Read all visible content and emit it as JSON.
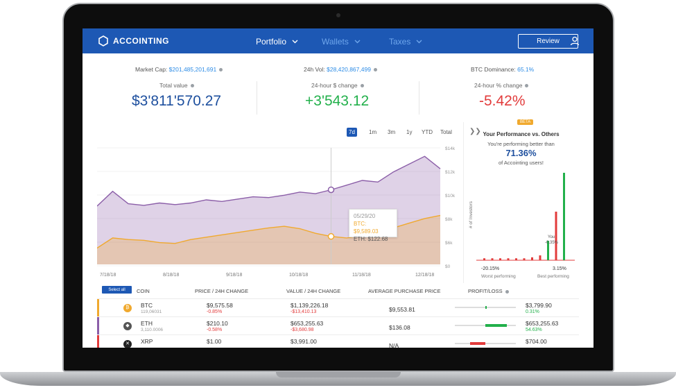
{
  "header": {
    "logo": "ACCOINTING",
    "nav": [
      {
        "label": "Portfolio"
      },
      {
        "label": "Wallets"
      },
      {
        "label": "Taxes"
      }
    ],
    "review_label": "Review"
  },
  "market": {
    "market_cap_label": "Market Cap:",
    "market_cap_value": "$201,485,201,691",
    "vol_label": "24h Vol:",
    "vol_value": "$28,420,867,499",
    "dominance_label": "BTC Dominance:",
    "dominance_value": "65.1%"
  },
  "totals": {
    "total_label": "Total value",
    "total_value": "$3'811'570.27",
    "change_label": "24-hour $ change",
    "change_value": "+3'543.12",
    "pct_label": "24-hour % change",
    "pct_value": "-5.42%"
  },
  "ranges": [
    "7d",
    "1m",
    "3m",
    "1y",
    "YTD",
    "Total"
  ],
  "colors": {
    "brand": "#1d58b4",
    "btc": "#f0a92e",
    "eth": "#8b5ea8",
    "positive": "#22b04b",
    "negative": "#e23b3b"
  },
  "chart_data": {
    "type": "area",
    "x_tick_labels": [
      "7/18/18",
      "8/18/18",
      "9/18/18",
      "10/18/18",
      "11/18/18",
      "12/18/18"
    ],
    "y_tick_labels": [
      "$14k",
      "$12k",
      "$10k",
      "$8k",
      "$6k",
      "$0"
    ],
    "series": [
      {
        "name": "ETH",
        "color": "#8b5ea8",
        "values": [
          7.5,
          9.4,
          7.8,
          7.6,
          7.9,
          7.7,
          7.9,
          8.3,
          8.1,
          8.4,
          8.7,
          8.6,
          8.9,
          9.3,
          9.1,
          9.6,
          10.2,
          10.8,
          10.6,
          11.9,
          12.9,
          13.9,
          12.3
        ]
      },
      {
        "name": "BTC",
        "color": "#f0a92e",
        "values": [
          2.1,
          3.4,
          3.2,
          3.1,
          2.8,
          2.7,
          3.2,
          3.5,
          3.8,
          4.1,
          4.4,
          4.7,
          4.9,
          4.6,
          4.0,
          3.6,
          3.4,
          3.7,
          4.2,
          4.7,
          5.3,
          5.9,
          6.3
        ]
      }
    ],
    "tooltip": {
      "date": "05/29/20",
      "btc": "BTC: $9,589.03",
      "eth": "ETH: $122.68"
    }
  },
  "performance": {
    "badge": "BETA",
    "title": "Your Performance vs. Others",
    "subtitle": "You're performing better than",
    "value": "71.36%",
    "subtitle2": "of Accointing users!",
    "axis_label": "# of Investors",
    "you_label": "You",
    "you_value": "-0.35%",
    "min_value": "-20.15%",
    "max_value": "3.15%",
    "worst_label": "Worst performing",
    "best_label": "Best performing",
    "bars": [
      2,
      2,
      2,
      2,
      2,
      2,
      3,
      5,
      20,
      50,
      90
    ]
  },
  "table": {
    "select_all": "Select all",
    "headers": [
      "COIN",
      "PRICE / 24H CHANGE",
      "VALUE / 24H CHANGE",
      "AVERAGE PURCHASE PRICE",
      "PROFIT/LOSS"
    ],
    "rows": [
      {
        "name": "BTC",
        "qty": "119,06031",
        "price": "$9,575.58",
        "price_change": "-0.85%",
        "value": "$1,139,226.18",
        "value_change": "-$13,410.13",
        "avg": "$9,553.81",
        "pl": "$3,799.90",
        "pl_pct": "0.31%",
        "pl_fraction": 0.05
      },
      {
        "name": "ETH",
        "qty": "3,110.0006",
        "price": "$210.10",
        "price_change": "-0.58%",
        "value": "$653,255.63",
        "value_change": "-$3,680.98",
        "avg": "$136.08",
        "pl": "$653,255.63",
        "pl_pct": "54.63%",
        "pl_fraction": 0.7
      },
      {
        "name": "XRP",
        "qty": "",
        "price": "$1.00",
        "price_change": "",
        "value": "$3,991.00",
        "value_change": "",
        "avg": "N/A",
        "pl": "$704.00",
        "pl_pct": "",
        "pl_fraction": -0.5
      }
    ]
  }
}
